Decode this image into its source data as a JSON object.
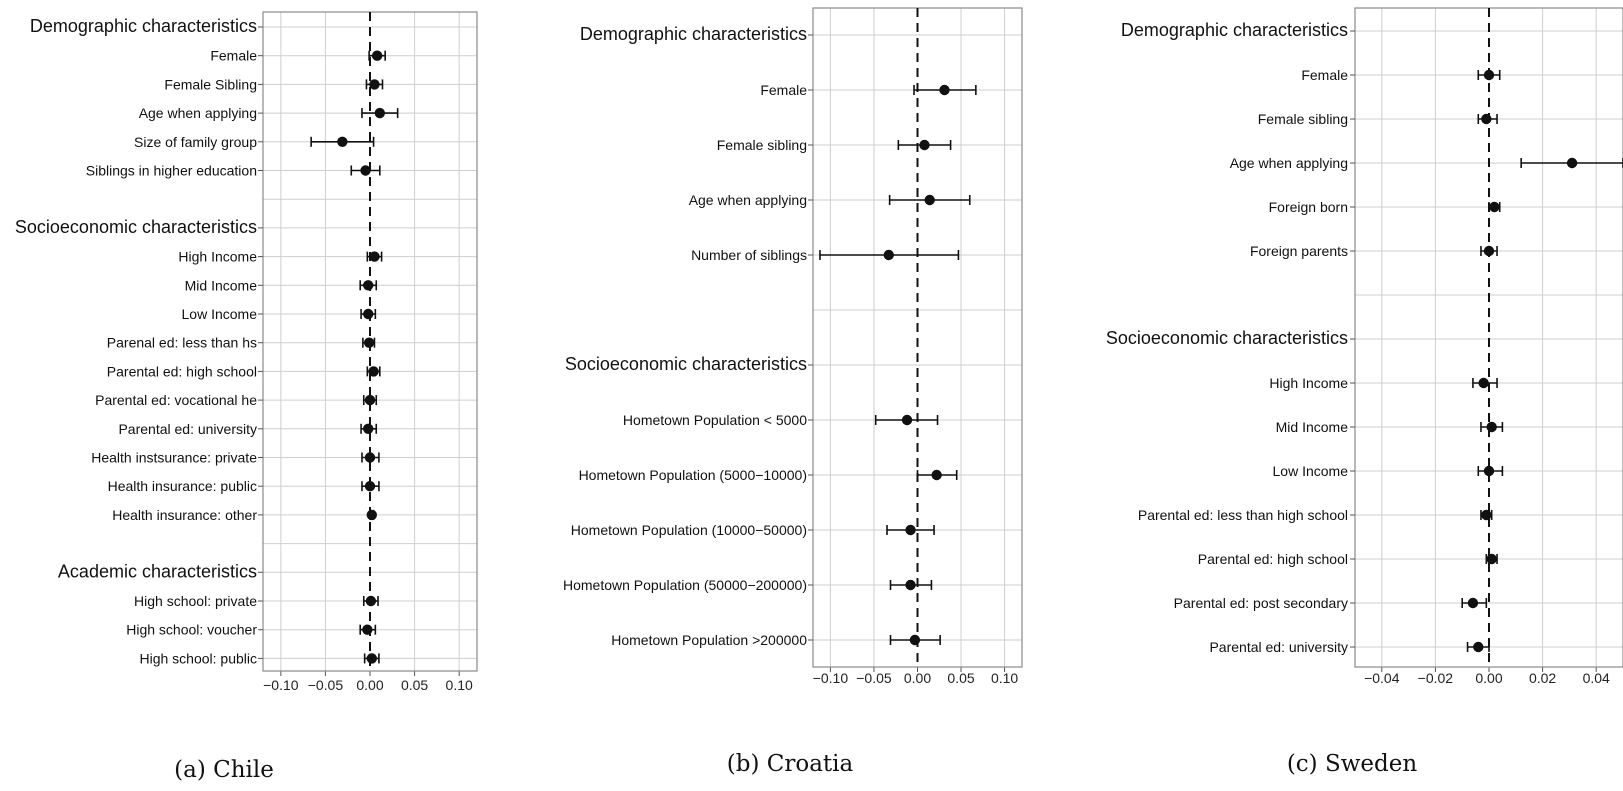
{
  "captions": [
    "(a) Chile",
    "(b) Croatia",
    "(c) Sweden"
  ],
  "chart_data": [
    {
      "type": "scatter",
      "title": "",
      "xlabel": "",
      "ylabel": "",
      "xlim": [
        -0.12,
        0.12
      ],
      "xticks": [
        -0.1,
        -0.05,
        0.0,
        0.05,
        0.1
      ],
      "xtick_labels": [
        "−0.10",
        "−0.05",
        "0.00",
        "0.05",
        "0.10"
      ],
      "grid": true,
      "reference_line": 0,
      "rows": [
        {
          "label": "Demographic characteristics",
          "header": true
        },
        {
          "label": "Female",
          "estimate": 0.008,
          "ci": [
            -0.001,
            0.017
          ]
        },
        {
          "label": "Female Sibling",
          "estimate": 0.005,
          "ci": [
            -0.004,
            0.014
          ]
        },
        {
          "label": "Age when applying",
          "estimate": 0.011,
          "ci": [
            -0.009,
            0.031
          ]
        },
        {
          "label": "Size of family group",
          "estimate": -0.031,
          "ci": [
            -0.066,
            0.004
          ]
        },
        {
          "label": "Siblings in higher education",
          "estimate": -0.005,
          "ci": [
            -0.021,
            0.011
          ]
        },
        {
          "label": "",
          "spacer": true
        },
        {
          "label": "Socioeconomic characteristics",
          "header": true
        },
        {
          "label": "High Income",
          "estimate": 0.005,
          "ci": [
            -0.003,
            0.013
          ]
        },
        {
          "label": "Mid Income",
          "estimate": -0.002,
          "ci": [
            -0.011,
            0.007
          ]
        },
        {
          "label": "Low Income",
          "estimate": -0.002,
          "ci": [
            -0.01,
            0.006
          ]
        },
        {
          "label": "Parenal ed: less than hs",
          "estimate": -0.001,
          "ci": [
            -0.008,
            0.005
          ]
        },
        {
          "label": "Parental ed: high school",
          "estimate": 0.004,
          "ci": [
            -0.003,
            0.011
          ]
        },
        {
          "label": "Parental ed: vocational he",
          "estimate": 0.0,
          "ci": [
            -0.007,
            0.007
          ]
        },
        {
          "label": "Parental ed: university",
          "estimate": -0.002,
          "ci": [
            -0.01,
            0.007
          ]
        },
        {
          "label": "Health instsurance: private",
          "estimate": 0.0,
          "ci": [
            -0.009,
            0.01
          ]
        },
        {
          "label": "Health insurance: public",
          "estimate": 0.0,
          "ci": [
            -0.009,
            0.01
          ]
        },
        {
          "label": "Health insurance: other",
          "estimate": 0.002,
          "ci": [
            0.0,
            0.004
          ]
        },
        {
          "label": "",
          "spacer": true
        },
        {
          "label": "Academic characteristics",
          "header": true
        },
        {
          "label": "High school: private",
          "estimate": 0.001,
          "ci": [
            -0.007,
            0.009
          ]
        },
        {
          "label": "High school: voucher",
          "estimate": -0.003,
          "ci": [
            -0.011,
            0.006
          ]
        },
        {
          "label": "High school: public",
          "estimate": 0.002,
          "ci": [
            -0.006,
            0.01
          ]
        }
      ]
    },
    {
      "type": "scatter",
      "title": "",
      "xlabel": "",
      "ylabel": "",
      "xlim": [
        -0.12,
        0.12
      ],
      "xticks": [
        -0.1,
        -0.05,
        0.0,
        0.05,
        0.1
      ],
      "xtick_labels": [
        "−0.10",
        "−0.05",
        "0.00",
        "0.05",
        "0.10"
      ],
      "grid": true,
      "reference_line": 0,
      "rows": [
        {
          "label": "Demographic characteristics",
          "header": true
        },
        {
          "label": "Female",
          "estimate": 0.031,
          "ci": [
            -0.004,
            0.067
          ]
        },
        {
          "label": "Female sibling",
          "estimate": 0.008,
          "ci": [
            -0.022,
            0.038
          ]
        },
        {
          "label": "Age when applying",
          "estimate": 0.014,
          "ci": [
            -0.032,
            0.06
          ]
        },
        {
          "label": "Number of siblings",
          "estimate": -0.033,
          "ci": [
            -0.112,
            0.047
          ]
        },
        {
          "label": "",
          "spacer": true
        },
        {
          "label": "Socioeconomic characteristics",
          "header": true
        },
        {
          "label": "Hometown Population < 5000",
          "estimate": -0.012,
          "ci": [
            -0.048,
            0.023
          ]
        },
        {
          "label": "Hometown Population (5000−10000)",
          "estimate": 0.022,
          "ci": [
            0.0,
            0.045
          ]
        },
        {
          "label": "Hometown Population (10000−50000)",
          "estimate": -0.008,
          "ci": [
            -0.035,
            0.019
          ]
        },
        {
          "label": "Hometown Population (50000−200000)",
          "estimate": -0.008,
          "ci": [
            -0.031,
            0.016
          ]
        },
        {
          "label": "Hometown Population >200000",
          "estimate": -0.003,
          "ci": [
            -0.031,
            0.026
          ]
        }
      ]
    },
    {
      "type": "scatter",
      "title": "",
      "xlabel": "",
      "ylabel": "",
      "xlim": [
        -0.05,
        0.05
      ],
      "xticks": [
        -0.04,
        -0.02,
        0.0,
        0.02,
        0.04
      ],
      "xtick_labels": [
        "−0.04",
        "−0.02",
        "0.00",
        "0.02",
        "0.04"
      ],
      "grid": true,
      "reference_line": 0,
      "rows": [
        {
          "label": "Demographic characteristics",
          "header": true
        },
        {
          "label": "Female",
          "estimate": 0.0,
          "ci": [
            -0.004,
            0.004
          ]
        },
        {
          "label": "Female sibling",
          "estimate": -0.001,
          "ci": [
            -0.004,
            0.003
          ]
        },
        {
          "label": "Age when applying",
          "estimate": 0.031,
          "ci": [
            0.012,
            0.05
          ]
        },
        {
          "label": "Foreign born",
          "estimate": 0.002,
          "ci": [
            0.0,
            0.004
          ]
        },
        {
          "label": "Foreign parents",
          "estimate": 0.0,
          "ci": [
            -0.003,
            0.003
          ]
        },
        {
          "label": "",
          "spacer": true
        },
        {
          "label": "Socioeconomic characteristics",
          "header": true
        },
        {
          "label": "High Income",
          "estimate": -0.002,
          "ci": [
            -0.006,
            0.003
          ]
        },
        {
          "label": "Mid Income",
          "estimate": 0.001,
          "ci": [
            -0.003,
            0.005
          ]
        },
        {
          "label": "Low Income",
          "estimate": 0.0,
          "ci": [
            -0.004,
            0.005
          ]
        },
        {
          "label": "Parental ed: less than high school",
          "estimate": -0.001,
          "ci": [
            -0.003,
            0.001
          ]
        },
        {
          "label": "Parental ed: high school",
          "estimate": 0.001,
          "ci": [
            -0.001,
            0.003
          ]
        },
        {
          "label": "Parental ed: post secondary",
          "estimate": -0.006,
          "ci": [
            -0.01,
            -0.001
          ]
        },
        {
          "label": "Parental ed: university",
          "estimate": -0.004,
          "ci": [
            -0.008,
            0.0
          ]
        }
      ]
    }
  ]
}
